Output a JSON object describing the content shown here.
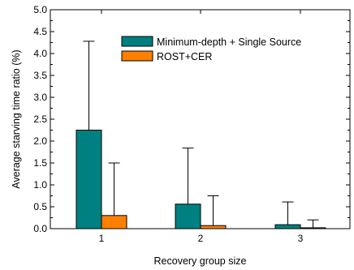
{
  "chart_data": {
    "type": "bar",
    "xlabel": "Recovery group size",
    "ylabel": "Average starving time ratio (%)",
    "categories": [
      "1",
      "2",
      "3"
    ],
    "ylim": [
      0,
      5.0
    ],
    "yticks": [
      "0.0",
      "0.5",
      "1.0",
      "1.5",
      "2.0",
      "2.5",
      "3.0",
      "3.5",
      "4.0",
      "4.5",
      "5.0"
    ],
    "grid": false,
    "legend_position": "top-right",
    "series": [
      {
        "name": "Minimum-depth + Single Source",
        "color": "#008080",
        "values": [
          2.25,
          0.56,
          0.09
        ],
        "error_upper": [
          4.28,
          1.84,
          0.61
        ]
      },
      {
        "name": "ROST+CER",
        "color": "#ff8000",
        "values": [
          0.3,
          0.07,
          0.02
        ],
        "error_upper": [
          1.5,
          0.75,
          0.2
        ]
      }
    ]
  }
}
